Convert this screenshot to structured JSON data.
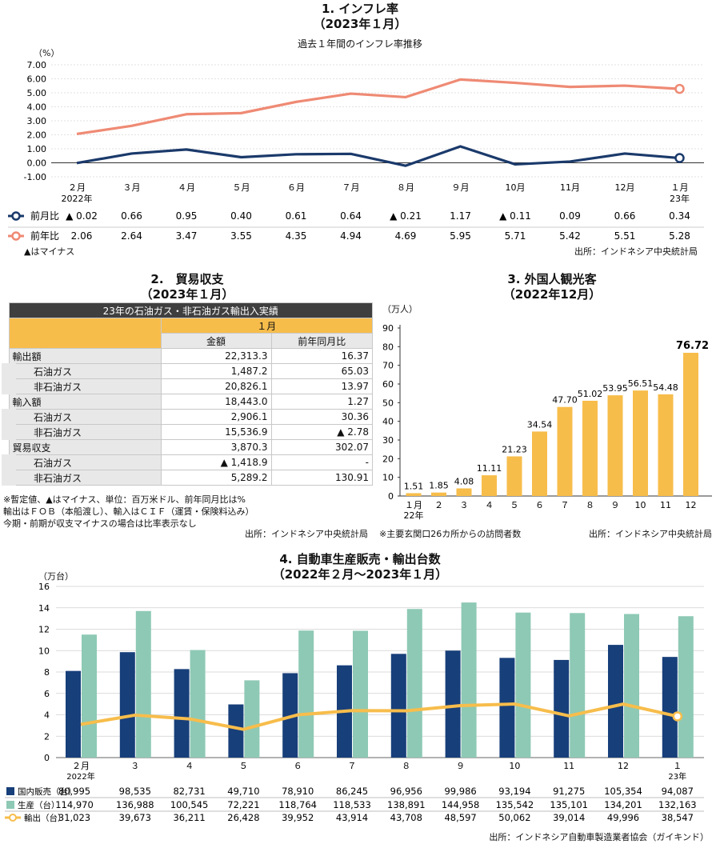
{
  "section1": {
    "title": "1. インフレ率",
    "subtitle": "（2023年１月）",
    "chart_title": "過去１年間のインフレ率推移",
    "unit": "（%）",
    "note": "▲はマイナス",
    "source": "出所：インドネシア中央統計局"
  },
  "section2": {
    "title": "2.　貿易収支",
    "subtitle": "（2023年１月）",
    "table_title": "23年の石油ガス・非石油ガス輸出入実績",
    "month_header": "１月",
    "col_amount": "金額",
    "col_yoy": "前年同月比",
    "rows": [
      {
        "label": "輸出額",
        "amount": "22,313.3",
        "yoy": "16.37",
        "indent": false
      },
      {
        "label": "石油ガス",
        "amount": "1,487.2",
        "yoy": "65.03",
        "indent": true
      },
      {
        "label": "非石油ガス",
        "amount": "20,826.1",
        "yoy": "13.97",
        "indent": true
      },
      {
        "label": "輸入額",
        "amount": "18,443.0",
        "yoy": "1.27",
        "indent": false
      },
      {
        "label": "石油ガス",
        "amount": "2,906.1",
        "yoy": "30.36",
        "indent": true
      },
      {
        "label": "非石油ガス",
        "amount": "15,536.9",
        "yoy": "▲ 2.78",
        "indent": true
      },
      {
        "label": "貿易収支",
        "amount": "3,870.3",
        "yoy": "302.07",
        "indent": false
      },
      {
        "label": "石油ガス",
        "amount": "▲ 1,418.9",
        "yoy": "-",
        "indent": true
      },
      {
        "label": "非石油ガス",
        "amount": "5,289.2",
        "yoy": "130.91",
        "indent": true
      }
    ],
    "notes": [
      "※暫定値、▲はマイナス、単位：百万米ドル、前年同月比は%",
      "輸出はＦＯＢ（本船渡し）、輸入はＣＩＦ（運賃・保険料込み）",
      "今期・前期が収支マイナスの場合は比率表示なし"
    ],
    "source": "出所：インドネシア中央統計局"
  },
  "section3": {
    "title": "3. 外国人観光客",
    "subtitle": "（2022年12月）",
    "unit": "（万人）",
    "note": "※主要玄関口26カ所からの訪問者数",
    "source": "出所：インドネシア中央統計局"
  },
  "section4": {
    "title": "4. 自動車生産販売・輸出台数",
    "subtitle": "（2022年２月～2023年１月）",
    "unit": "（万台）",
    "source": "出所：インドネシア自動車製造業者協会（ガイキンド）"
  },
  "chart_data": [
    {
      "type": "line",
      "categories": [
        "２月",
        "３月",
        "４月",
        "５月",
        "６月",
        "７月",
        "８月",
        "９月",
        "10月",
        "11月",
        "12月",
        "１月"
      ],
      "year_labels": {
        "0": "2022年",
        "11": "23年"
      },
      "ylim": [
        -1,
        7
      ],
      "yticks": [
        "-1.00",
        "0.00",
        "1.00",
        "2.00",
        "3.00",
        "4.00",
        "5.00",
        "6.00",
        "7.00"
      ],
      "colors": {
        "mom": "#1b3a6b",
        "yoy": "#ef8a74"
      },
      "series": [
        {
          "name": "前月比",
          "values": [
            -0.02,
            0.66,
            0.95,
            0.4,
            0.61,
            0.64,
            -0.21,
            1.17,
            -0.11,
            0.09,
            0.66,
            0.34
          ],
          "labels": [
            "▲ 0.02",
            "0.66",
            "0.95",
            "0.40",
            "0.61",
            "0.64",
            "▲ 0.21",
            "1.17",
            "▲ 0.11",
            "0.09",
            "0.66",
            "0.34"
          ]
        },
        {
          "name": "前年比",
          "values": [
            2.06,
            2.64,
            3.47,
            3.55,
            4.35,
            4.94,
            4.69,
            5.95,
            5.71,
            5.42,
            5.51,
            5.28
          ],
          "labels": [
            "2.06",
            "2.64",
            "3.47",
            "3.55",
            "4.35",
            "4.94",
            "4.69",
            "5.95",
            "5.71",
            "5.42",
            "5.51",
            "5.28"
          ]
        }
      ]
    },
    {
      "type": "bar",
      "categories": [
        "１月",
        "２",
        "３",
        "４",
        "５",
        "６",
        "７",
        "８",
        "９",
        "10",
        "11",
        "12"
      ],
      "year_labels": {
        "0": "22年"
      },
      "values": [
        1.51,
        1.85,
        4.08,
        11.11,
        21.23,
        34.54,
        47.7,
        51.02,
        53.95,
        56.51,
        54.48,
        76.72
      ],
      "labels": [
        "1.51",
        "1.85",
        "4.08",
        "11.11",
        "21.23",
        "34.54",
        "47.70",
        "51.02",
        "53.95",
        "56.51",
        "54.48",
        "76.72"
      ],
      "ylim": [
        0,
        90
      ],
      "yticks": [
        "0",
        "10",
        "20",
        "30",
        "40",
        "50",
        "60",
        "70",
        "80",
        "90"
      ],
      "color": "#f7bd4b"
    },
    {
      "type": "bar",
      "categories": [
        "２月",
        "３",
        "４",
        "５",
        "６",
        "７",
        "８",
        "９",
        "10",
        "11",
        "12",
        "１"
      ],
      "year_labels": {
        "0": "2022年",
        "11": "23年"
      },
      "ylim": [
        0,
        16
      ],
      "yticks": [
        "0",
        "2",
        "4",
        "6",
        "8",
        "10",
        "12",
        "14",
        "16"
      ],
      "series": [
        {
          "name": "国内販売（台）",
          "color": "#173f7a",
          "values": [
            80995,
            98535,
            82731,
            49710,
            78910,
            86245,
            96956,
            99986,
            93194,
            91275,
            105354,
            94087
          ],
          "labels": [
            "80,995",
            "98,535",
            "82,731",
            "49,710",
            "78,910",
            "86,245",
            "96,956",
            "99,986",
            "93,194",
            "91,275",
            "105,354",
            "94,087"
          ]
        },
        {
          "name": "生産（台）",
          "color": "#8ec9b5",
          "values": [
            114970,
            136988,
            100545,
            72221,
            118764,
            118533,
            138891,
            144958,
            135542,
            135101,
            134201,
            132163
          ],
          "labels": [
            "114,970",
            "136,988",
            "100,545",
            "72,221",
            "118,764",
            "118,533",
            "138,891",
            "144,958",
            "135,542",
            "135,101",
            "134,201",
            "132,163"
          ]
        },
        {
          "name": "輸出（台）",
          "color": "#f7bd4b",
          "type": "line",
          "values": [
            31023,
            39673,
            36211,
            26428,
            39952,
            43914,
            43708,
            48597,
            50062,
            39014,
            49996,
            38547
          ],
          "labels": [
            "31,023",
            "39,673",
            "36,211",
            "26,428",
            "39,952",
            "43,914",
            "43,708",
            "48,597",
            "50,062",
            "39,014",
            "49,996",
            "38,547"
          ]
        }
      ]
    }
  ]
}
